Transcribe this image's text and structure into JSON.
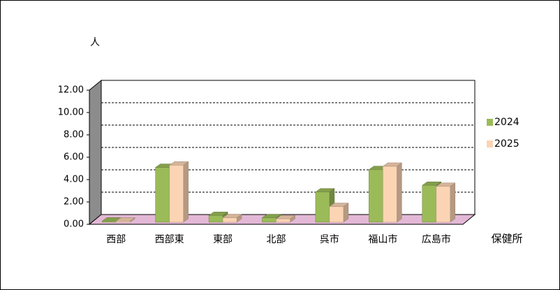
{
  "chart_data": {
    "type": "bar3d",
    "y_label": "人",
    "x_label": "保健所",
    "categories": [
      "西部",
      "西部東",
      "東部",
      "北部",
      "呉市",
      "福山市",
      "広島市"
    ],
    "series": [
      {
        "name": "2024",
        "color": "#9bbb59",
        "values": [
          0.1,
          4.9,
          0.6,
          0.4,
          2.7,
          4.7,
          3.3
        ]
      },
      {
        "name": "2025",
        "color": "#fbd4b4",
        "values": [
          0.1,
          5.1,
          0.4,
          0.3,
          1.4,
          5.0,
          3.2
        ]
      }
    ],
    "ylim": [
      0,
      12
    ],
    "yticks": [
      {
        "value": 0,
        "label": "0.00"
      },
      {
        "value": 2,
        "label": "2.00"
      },
      {
        "value": 4,
        "label": "4.00"
      },
      {
        "value": 6,
        "label": "6.00"
      },
      {
        "value": 8,
        "label": "8.00"
      },
      {
        "value": 10,
        "label": "10.00"
      },
      {
        "value": 12,
        "label": "12.00"
      }
    ],
    "grid": true
  }
}
